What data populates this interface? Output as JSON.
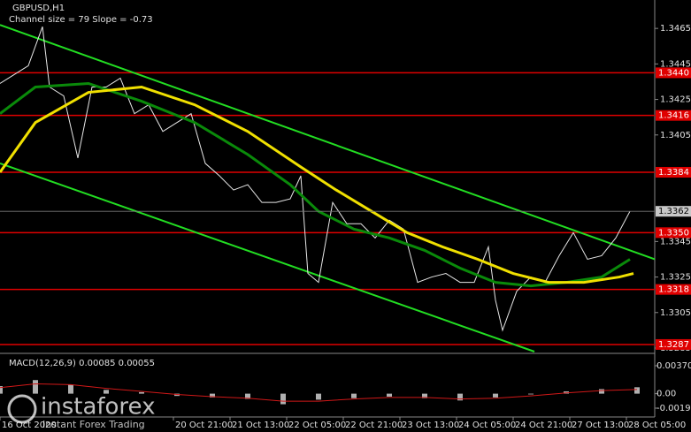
{
  "chart_data": [
    {
      "type": "line",
      "title": "GBPUSD,H1",
      "subtitle": "Channel size = 79 Slope = -0.73",
      "xlim": [
        0,
        185
      ],
      "ylim": [
        1.3283,
        1.3481
      ],
      "yticks": [
        1.3465,
        1.3445,
        1.3425,
        1.3405,
        1.3345,
        1.3325,
        1.3305,
        1.3285
      ],
      "xticks": [
        {
          "value": 0,
          "label": "16 Oct 2020"
        },
        {
          "value": 49,
          "label": "20 Oct 21:00"
        },
        {
          "value": 65,
          "label": "21 Oct 13:00"
        },
        {
          "value": 81,
          "label": "22 Oct 05:00"
        },
        {
          "value": 97,
          "label": "22 Oct 21:00"
        },
        {
          "value": 113,
          "label": "23 Oct 13:00"
        },
        {
          "value": 129,
          "label": "24 Oct 05:00"
        },
        {
          "value": 145,
          "label": "24 Oct 21:00"
        },
        {
          "value": 161,
          "label": "27 Oct 13:00"
        },
        {
          "value": 177,
          "label": "28 Oct 05:00"
        }
      ],
      "series": [
        {
          "color": "#e8e8e8",
          "x": [
            0,
            4,
            8,
            12,
            14,
            18,
            22,
            26,
            30,
            34,
            38,
            42,
            46,
            50,
            54,
            58,
            62,
            66,
            70,
            74,
            78,
            82,
            85,
            87,
            90,
            94,
            98,
            102,
            106,
            110,
            114,
            118,
            122,
            126,
            130,
            134,
            138,
            140,
            142,
            146,
            150,
            154,
            158,
            162,
            166,
            170,
            174,
            178
          ],
          "values": [
            1.3434,
            1.3439,
            1.3444,
            1.3466,
            1.3432,
            1.3427,
            1.3392,
            1.3432,
            1.3432,
            1.3437,
            1.3417,
            1.3422,
            1.3407,
            1.3412,
            1.3417,
            1.3389,
            1.3382,
            1.3374,
            1.3377,
            1.3367,
            1.3367,
            1.3369,
            1.3382,
            1.3327,
            1.3322,
            1.3367,
            1.3355,
            1.3355,
            1.3347,
            1.3357,
            1.3352,
            1.3322,
            1.3325,
            1.3327,
            1.3322,
            1.3322,
            1.3342,
            1.3312,
            1.3295,
            1.3317,
            1.3325,
            1.3322,
            1.3337,
            1.335,
            1.3335,
            1.3337,
            1.3347,
            1.3362
          ]
        },
        {
          "color": "#0a8a0a",
          "x": [
            0,
            10,
            25,
            40,
            55,
            70,
            82,
            90,
            100,
            110,
            120,
            130,
            140,
            150,
            160,
            170,
            178
          ],
          "values": [
            1.3417,
            1.3432,
            1.3434,
            1.3424,
            1.3412,
            1.3394,
            1.3377,
            1.3362,
            1.3352,
            1.3347,
            1.334,
            1.333,
            1.3322,
            1.332,
            1.3322,
            1.3325,
            1.3335
          ]
        },
        {
          "color": "#f0e000",
          "x": [
            0,
            10,
            25,
            40,
            55,
            70,
            85,
            95,
            105,
            115,
            125,
            135,
            145,
            155,
            165,
            175,
            179
          ],
          "values": [
            1.3384,
            1.3412,
            1.3429,
            1.3432,
            1.3422,
            1.3407,
            1.3387,
            1.3374,
            1.3362,
            1.335,
            1.3342,
            1.3335,
            1.3327,
            1.3322,
            1.3322,
            1.3325,
            1.3327
          ]
        }
      ],
      "channels": [
        {
          "x": [
            0,
            185
          ],
          "values": [
            1.3467,
            1.3335
          ]
        },
        {
          "x": [
            0,
            151
          ],
          "values": [
            1.3389,
            1.3283
          ]
        }
      ],
      "channel_color": "#22dd22",
      "levels": [
        {
          "value": 1.344,
          "label": "1.3440"
        },
        {
          "value": 1.3416,
          "label": "1.3416"
        },
        {
          "value": 1.3384,
          "label": "1.3384"
        },
        {
          "value": 1.335,
          "label": "1.3350"
        },
        {
          "value": 1.3318,
          "label": "1.3318"
        },
        {
          "value": 1.3287,
          "label": "1.3287"
        }
      ],
      "level_color": "#e00000",
      "last_price": 1.3362
    },
    {
      "type": "macd",
      "title": "MACD(12,26,9) 0.00085 0.00055",
      "ylim": [
        -0.00192,
        0.0037
      ],
      "yticks": [
        {
          "value": 0.0037,
          "label": "0.00370"
        },
        {
          "value": 0,
          "label": "0.00"
        },
        -0.00192
      ],
      "x": [
        0,
        10,
        20,
        30,
        40,
        50,
        60,
        70,
        80,
        90,
        100,
        110,
        120,
        130,
        140,
        150,
        160,
        170,
        180
      ],
      "histogram": [
        0.001,
        0.0018,
        0.0012,
        0.0005,
        0.0002,
        -0.0003,
        -0.0005,
        -0.0007,
        -0.0014,
        -0.0008,
        -0.0006,
        -0.0004,
        -0.0006,
        -0.0009,
        -0.0005,
        -0.0001,
        0.0003,
        0.0006,
        0.00085
      ],
      "signal": [
        0.0008,
        0.0013,
        0.0012,
        0.0007,
        0.0003,
        -0.0001,
        -0.0004,
        -0.0006,
        -0.001,
        -0.001,
        -0.0007,
        -0.0005,
        -0.0005,
        -0.0007,
        -0.0006,
        -0.0003,
        0.0001,
        0.0004,
        0.00055
      ],
      "histogram_color": "#b0b0b0",
      "signal_color": "#d01818"
    }
  ],
  "watermark": {
    "brand": "instaforex",
    "tagline": "Instant Forex Trading"
  }
}
